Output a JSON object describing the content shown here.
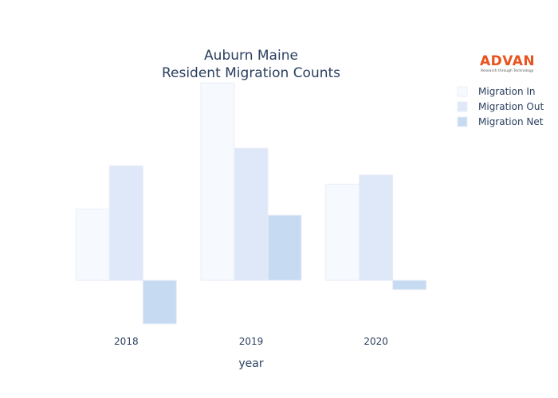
{
  "chart_data": {
    "type": "bar",
    "title": [
      "Auburn Maine",
      "Resident Migration Counts"
    ],
    "xlabel": "year",
    "ylabel": "",
    "categories": [
      "2018",
      "2019",
      "2020"
    ],
    "series": [
      {
        "name": "Migration In",
        "values": [
          85,
          236,
          115
        ],
        "color": "#f6f9fe"
      },
      {
        "name": "Migration Out",
        "values": [
          137,
          158,
          126
        ],
        "color": "#dfe8f8"
      },
      {
        "name": "Migration Net",
        "values": [
          -52,
          78,
          -11
        ],
        "color": "#c6daf2"
      }
    ],
    "ylim": [
      -55,
      240
    ],
    "grid": false,
    "legend_position": "top-right"
  },
  "logo": {
    "brand": "ADVAN",
    "tagline": "Research through Technology"
  }
}
